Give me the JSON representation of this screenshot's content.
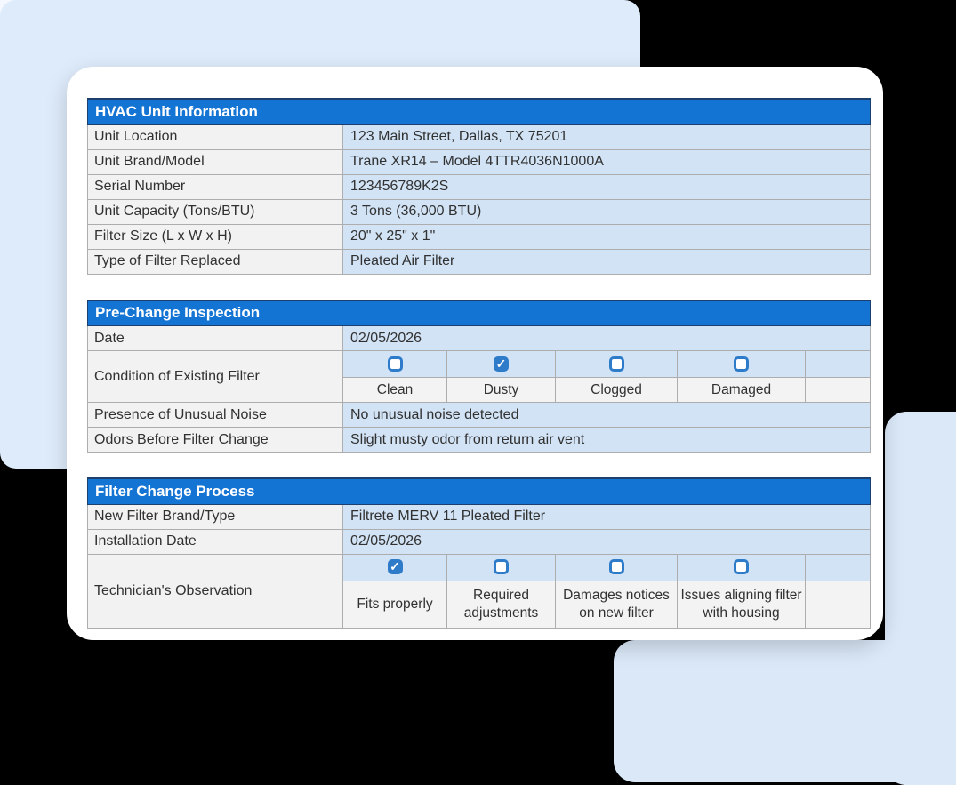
{
  "colors": {
    "headerBar": "#1474D4",
    "headerBorder": "#1C3F6E",
    "valueCell": "#D2E3F5",
    "labelCell": "#F2F2F2",
    "cbLabelCell": "#F3F3F3",
    "tableBorder": "#ADADAD",
    "checkbox": "#2E7BC9",
    "text": "#313131",
    "cardBg": "#FFFFFF",
    "canvas": "#000000",
    "accentA": "#DEEBFA",
    "accentB": "#DAE8F8"
  },
  "tables": [
    {
      "title": "HVAC Unit Information",
      "rows": [
        {
          "label": "Unit Location",
          "value": "123 Main Street, Dallas, TX 75201"
        },
        {
          "label": "Unit Brand/Model",
          "value": "Trane XR14 – Model 4TTR4036N1000A"
        },
        {
          "label": "Serial Number",
          "value": "123456789K2S"
        },
        {
          "label": "Unit Capacity (Tons/BTU)",
          "value": "3 Tons (36,000 BTU)"
        },
        {
          "label": "Filter Size (L x W x H)",
          "value": "20\" x 25\" x 1\""
        },
        {
          "label": "Type of Filter Replaced",
          "value": "Pleated Air Filter"
        }
      ]
    },
    {
      "title": "Pre-Change Inspection",
      "rows": [
        {
          "label": "Date",
          "value": "02/05/2026"
        },
        {
          "label": "Condition of Existing Filter",
          "checkboxes": [
            {
              "label": "Clean",
              "checked": false
            },
            {
              "label": "Dusty",
              "checked": true
            },
            {
              "label": "Clogged",
              "checked": false
            },
            {
              "label": "Damaged",
              "checked": false
            }
          ]
        },
        {
          "label": "Presence of Unusual Noise",
          "value": "No unusual noise detected"
        },
        {
          "label": "Odors Before Filter Change",
          "value": "Slight musty odor from return air vent"
        }
      ]
    },
    {
      "title": "Filter Change Process",
      "rows": [
        {
          "label": "New Filter Brand/Type",
          "value": "Filtrete MERV 11 Pleated Filter"
        },
        {
          "label": "Installation Date",
          "value": "02/05/2026"
        },
        {
          "label": "Technician's Observation",
          "checkboxes": [
            {
              "label": "Fits properly",
              "checked": true
            },
            {
              "label": "Required adjustments",
              "checked": false
            },
            {
              "label": "Damages notices on new filter",
              "checked": false
            },
            {
              "label": "Issues aligning filter with housing",
              "checked": false
            }
          ]
        }
      ]
    }
  ],
  "checkmark_glyph": "✓"
}
